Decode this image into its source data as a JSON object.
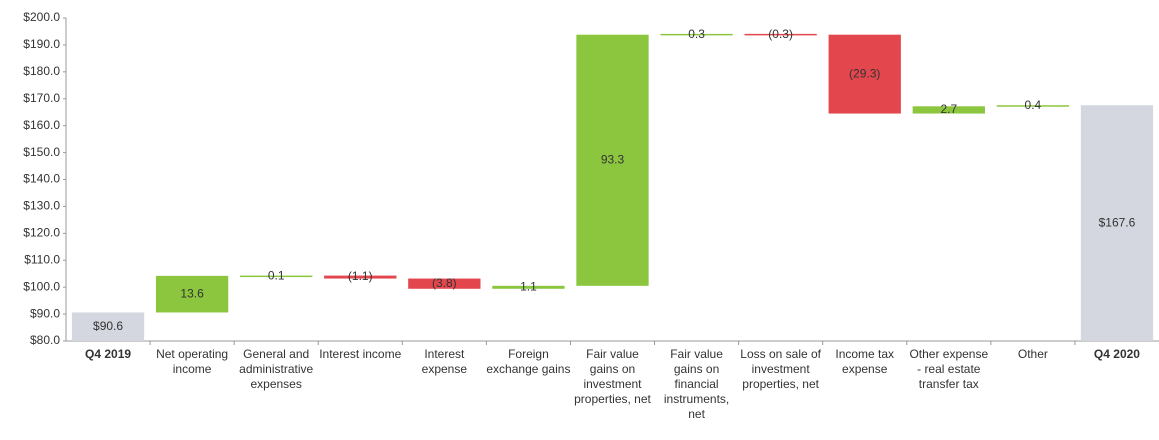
{
  "chart_data": {
    "type": "waterfall",
    "categories": [
      "Q4 2019",
      "Net operating income",
      "General and administrative expenses",
      "Interest income",
      "Interest expense",
      "Foreign exchange gains",
      "Fair value gains on investment properties, net",
      "Fair value gains on financial instruments, net",
      "Loss on sale of investment properties, net",
      "Income tax expense",
      "Other expense - real estate transfer tax",
      "Other",
      "Q4 2020"
    ],
    "values": [
      90.6,
      13.6,
      0.1,
      -1.1,
      -3.8,
      1.1,
      93.3,
      0.3,
      -0.3,
      -29.3,
      2.7,
      0.4,
      167.6
    ],
    "value_labels": [
      "$90.6",
      "13.6",
      "0.1",
      "(1.1)",
      "(3.8)",
      "1.1",
      "93.3",
      "0.3",
      "(0.3)",
      "(29.3)",
      "2.7",
      "0.4",
      "$167.6"
    ],
    "measure": [
      "total",
      "relative",
      "relative",
      "relative",
      "relative",
      "relative",
      "relative",
      "relative",
      "relative",
      "relative",
      "relative",
      "relative",
      "total"
    ],
    "total_color": "#d4d7df",
    "increase_color": "#8cc63f",
    "decrease_color": "#e3474d",
    "ylim": [
      80,
      200
    ],
    "yticks": [
      {
        "value": 80,
        "label": "$80.0"
      },
      {
        "value": 90,
        "label": "$90.0"
      },
      {
        "value": 100,
        "label": "$100.0"
      },
      {
        "value": 110,
        "label": "$110.0"
      },
      {
        "value": 120,
        "label": "$120.0"
      },
      {
        "value": 130,
        "label": "$130.0"
      },
      {
        "value": 140,
        "label": "$140.0"
      },
      {
        "value": 150,
        "label": "$150.0"
      },
      {
        "value": 160,
        "label": "$160.0"
      },
      {
        "value": 170,
        "label": "$170.0"
      },
      {
        "value": 180,
        "label": "$180.0"
      },
      {
        "value": 190,
        "label": "$190.0"
      },
      {
        "value": 200,
        "label": "$200.0"
      }
    ]
  }
}
